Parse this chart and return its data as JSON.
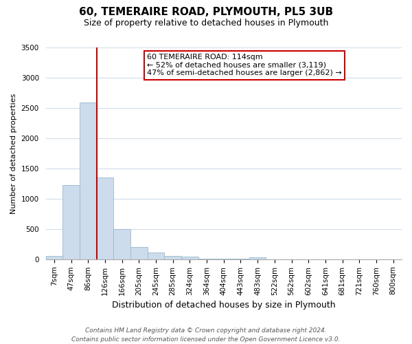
{
  "title": "60, TEMERAIRE ROAD, PLYMOUTH, PL5 3UB",
  "subtitle": "Size of property relative to detached houses in Plymouth",
  "xlabel": "Distribution of detached houses by size in Plymouth",
  "ylabel": "Number of detached properties",
  "bar_labels": [
    "7sqm",
    "47sqm",
    "86sqm",
    "126sqm",
    "166sqm",
    "205sqm",
    "245sqm",
    "285sqm",
    "324sqm",
    "364sqm",
    "404sqm",
    "443sqm",
    "483sqm",
    "522sqm",
    "562sqm",
    "602sqm",
    "641sqm",
    "681sqm",
    "721sqm",
    "760sqm",
    "800sqm"
  ],
  "bar_values": [
    50,
    1230,
    2590,
    1350,
    500,
    200,
    110,
    50,
    40,
    15,
    10,
    5,
    30,
    0,
    0,
    0,
    0,
    0,
    0,
    0,
    0
  ],
  "bar_color": "#ccdcec",
  "bar_edge_color": "#99b8cc",
  "vline_color": "#cc0000",
  "vline_pos": 2.5,
  "ylim": [
    0,
    3500
  ],
  "yticks": [
    0,
    500,
    1000,
    1500,
    2000,
    2500,
    3000,
    3500
  ],
  "annotation_title": "60 TEMERAIRE ROAD: 114sqm",
  "annotation_line1": "← 52% of detached houses are smaller (3,119)",
  "annotation_line2": "47% of semi-detached houses are larger (2,862) →",
  "annotation_box_color": "#ffffff",
  "annotation_box_edge": "#cc0000",
  "footer_line1": "Contains HM Land Registry data © Crown copyright and database right 2024.",
  "footer_line2": "Contains public sector information licensed under the Open Government Licence v3.0.",
  "bg_color": "#ffffff",
  "grid_color": "#d0dce8",
  "title_fontsize": 11,
  "subtitle_fontsize": 9,
  "ylabel_fontsize": 8,
  "xlabel_fontsize": 9,
  "tick_fontsize": 7.5,
  "ann_fontsize": 8,
  "footer_fontsize": 6.5
}
